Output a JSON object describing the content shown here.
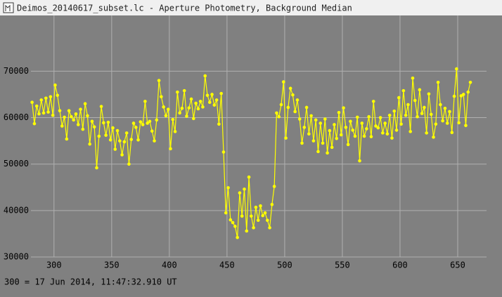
{
  "window": {
    "title": "Deimos_20140617_subset.lc - Aperture Photometry, Background Median"
  },
  "footer": "300 = 17 Jun 2014, 11:47:32.910 UT",
  "chart_data": {
    "type": "line",
    "color": "#ffff00",
    "grid": true,
    "markers": true,
    "xlim": [
      280,
      675
    ],
    "ylim": [
      30000,
      82000
    ],
    "xticks": [
      300,
      350,
      400,
      450,
      500,
      550,
      600,
      650
    ],
    "yticks": [
      30000,
      40000,
      50000,
      60000,
      70000
    ],
    "x": [
      281,
      283,
      285,
      287,
      289,
      291,
      293,
      295,
      297,
      299,
      301,
      303,
      305,
      307,
      309,
      311,
      313,
      315,
      317,
      319,
      321,
      323,
      325,
      327,
      329,
      331,
      333,
      335,
      337,
      339,
      341,
      343,
      345,
      347,
      349,
      351,
      353,
      355,
      357,
      359,
      361,
      363,
      365,
      367,
      369,
      371,
      373,
      375,
      377,
      379,
      381,
      383,
      385,
      387,
      389,
      391,
      393,
      395,
      397,
      399,
      401,
      403,
      405,
      407,
      409,
      411,
      413,
      415,
      417,
      419,
      421,
      423,
      425,
      427,
      429,
      431,
      433,
      435,
      437,
      439,
      441,
      443,
      445,
      447,
      449,
      451,
      453,
      455,
      457,
      459,
      461,
      463,
      465,
      467,
      469,
      471,
      473,
      475,
      477,
      479,
      481,
      483,
      485,
      487,
      489,
      491,
      493,
      495,
      497,
      499,
      501,
      503,
      505,
      507,
      509,
      511,
      513,
      515,
      517,
      519,
      521,
      523,
      525,
      527,
      529,
      531,
      533,
      535,
      537,
      539,
      541,
      543,
      545,
      547,
      549,
      551,
      553,
      555,
      557,
      559,
      561,
      563,
      565,
      567,
      569,
      571,
      573,
      575,
      577,
      579,
      581,
      583,
      585,
      587,
      589,
      591,
      593,
      595,
      597,
      599,
      601,
      603,
      605,
      607,
      609,
      611,
      613,
      615,
      617,
      619,
      621,
      623,
      625,
      627,
      629,
      631,
      633,
      635,
      637,
      639,
      641,
      643,
      645,
      647,
      649,
      651,
      653,
      655,
      657,
      659,
      661
    ],
    "values": [
      63300,
      58700,
      62500,
      60800,
      63800,
      61000,
      64200,
      61200,
      64500,
      60500,
      67000,
      64800,
      61500,
      58200,
      60100,
      55400,
      61500,
      60200,
      59500,
      60800,
      58500,
      61800,
      57500,
      63000,
      60400,
      54300,
      59200,
      58000,
      49200,
      56000,
      62400,
      58900,
      56200,
      59000,
      55200,
      57800,
      53200,
      57200,
      55000,
      52000,
      54800,
      56700,
      50000,
      55300,
      58800,
      57900,
      55200,
      59100,
      58500,
      63500,
      58800,
      59200,
      57100,
      55000,
      59500,
      68000,
      64500,
      62300,
      60400,
      61800,
      53300,
      59600,
      57000,
      65500,
      61000,
      62000,
      65800,
      60300,
      62100,
      64000,
      59800,
      63100,
      61900,
      63500,
      62300,
      69000,
      64800,
      63300,
      65000,
      62700,
      63800,
      58600,
      65200,
      52600,
      39500,
      44900,
      38000,
      37400,
      36600,
      34200,
      43800,
      38800,
      44600,
      35600,
      47200,
      38800,
      36300,
      40700,
      37900,
      41000,
      38900,
      39500,
      37900,
      36300,
      41300,
      45200,
      61000,
      60200,
      62800,
      67700,
      55600,
      62200,
      66300,
      64900,
      61300,
      63800,
      59700,
      54500,
      57900,
      62200,
      56500,
      60400,
      55000,
      59500,
      52700,
      58800,
      54500,
      59700,
      52400,
      57200,
      53600,
      58500,
      55500,
      61100,
      56300,
      62100,
      57900,
      54200,
      59200,
      57300,
      56000,
      60100,
      50700,
      58800,
      56000,
      57600,
      60200,
      55900,
      63500,
      58200,
      57800,
      60000,
      56700,
      58800,
      56500,
      60500,
      55600,
      61400,
      57300,
      64300,
      58600,
      65800,
      60500,
      62800,
      57000,
      68500,
      63700,
      60200,
      66000,
      60900,
      62200,
      56700,
      65100,
      60700,
      55800,
      58600,
      67600,
      62800,
      59300,
      62000,
      58800,
      61300,
      56800,
      64600,
      70500,
      58900,
      64700,
      65000,
      58300,
      65500,
      67600
    ]
  }
}
